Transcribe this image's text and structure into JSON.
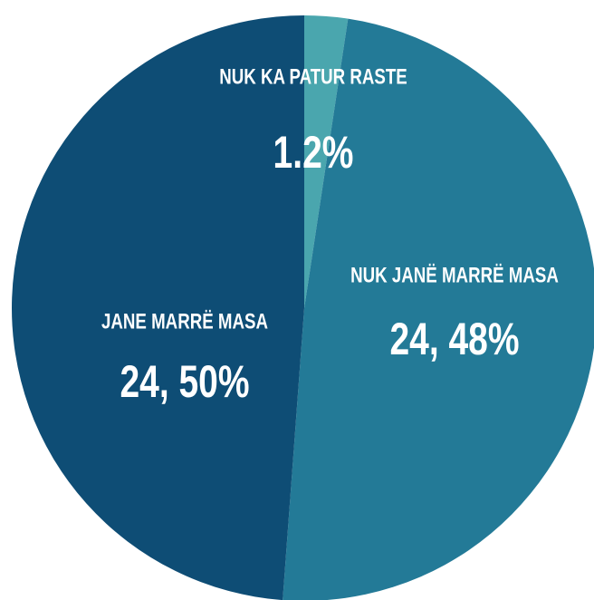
{
  "chart_data": {
    "type": "pie",
    "categories": [
      "NUK KA PATUR RASTE",
      "NUK JANË MARRË MASA",
      "JANE MARRË MASA"
    ],
    "values": [
      1.2,
      24.48,
      24.5
    ],
    "value_labels": [
      "1.2%",
      "24, 48%",
      "24, 50%"
    ],
    "colors": [
      "#4aa6ae",
      "#237a97",
      "#0e4d75"
    ]
  }
}
